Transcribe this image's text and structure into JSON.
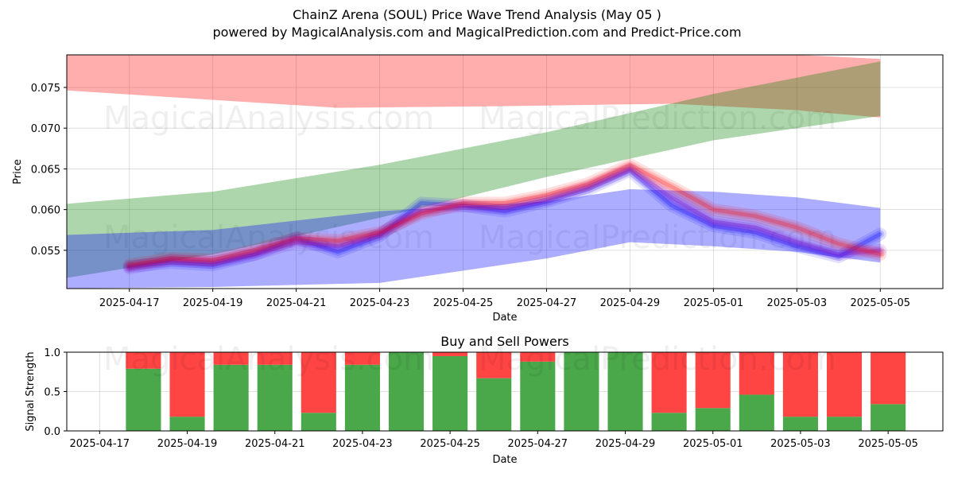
{
  "header": {
    "title": "ChainZ Arena (SOUL) Price Wave Trend Analysis (May 05 )",
    "subtitle": "powered by MagicalAnalysis.com and MagicalPrediction.com and Predict-Price.com"
  },
  "watermarks": [
    "MagicalAnalysis.com",
    "MagicalPrediction.com"
  ],
  "colors": {
    "red": "#ff0000",
    "green": "#008000",
    "blue": "#0000ff",
    "buy": "#4aa84a",
    "sell": "#ff4444"
  },
  "chart_data": [
    {
      "type": "area",
      "title": "",
      "xlabel": "Date",
      "ylabel": "Price",
      "grid": true,
      "xlim": [
        "2025-04-15 12:00",
        "2025-05-06 12:00"
      ],
      "ylim": [
        0.0503,
        0.079
      ],
      "x_ticks": [
        "2025-04-17",
        "2025-04-19",
        "2025-04-21",
        "2025-04-23",
        "2025-04-25",
        "2025-04-27",
        "2025-04-29",
        "2025-05-01",
        "2025-05-03",
        "2025-05-05"
      ],
      "y_ticks": [
        "0.055",
        "0.060",
        "0.065",
        "0.070",
        "0.075"
      ],
      "bands": [
        {
          "name": "red-upper-band",
          "color": "#ff0000",
          "opacity": 0.32,
          "x": [
            "2025-04-15",
            "2025-04-18",
            "2025-04-22",
            "2025-04-26",
            "2025-04-30",
            "2025-05-03",
            "2025-05-05"
          ],
          "upper": [
            0.079,
            0.079,
            0.079,
            0.079,
            0.079,
            0.079,
            0.0785
          ],
          "lower": [
            0.0748,
            0.0738,
            0.0725,
            0.0727,
            0.073,
            0.0722,
            0.0713
          ]
        },
        {
          "name": "green-trend-band",
          "color": "#008000",
          "opacity": 0.32,
          "x": [
            "2025-04-15",
            "2025-04-19",
            "2025-04-23",
            "2025-04-27",
            "2025-05-01",
            "2025-05-05"
          ],
          "upper": [
            0.0605,
            0.0622,
            0.0655,
            0.0695,
            0.0742,
            0.0782
          ],
          "lower": [
            0.0512,
            0.0545,
            0.059,
            0.064,
            0.0685,
            0.0715
          ]
        },
        {
          "name": "blue-lower-band",
          "color": "#0000ff",
          "opacity": 0.32,
          "x": [
            "2025-04-15",
            "2025-04-19",
            "2025-04-23",
            "2025-04-27",
            "2025-04-29",
            "2025-05-01",
            "2025-05-03",
            "2025-05-05"
          ],
          "upper": [
            0.0568,
            0.0575,
            0.0598,
            0.061,
            0.0625,
            0.0622,
            0.0615,
            0.0602
          ],
          "lower": [
            0.0503,
            0.0505,
            0.051,
            0.054,
            0.056,
            0.0555,
            0.0548,
            0.0535
          ]
        }
      ],
      "series": [
        {
          "name": "blue-wave",
          "color": "#0000ff",
          "x": [
            "2025-04-17",
            "2025-04-18",
            "2025-04-19",
            "2025-04-20",
            "2025-04-21",
            "2025-04-22",
            "2025-04-23",
            "2025-04-24",
            "2025-04-25",
            "2025-04-26",
            "2025-04-27",
            "2025-04-28",
            "2025-04-29",
            "2025-04-30",
            "2025-05-01",
            "2025-05-02",
            "2025-05-03",
            "2025-05-04",
            "2025-05-05"
          ],
          "values": [
            0.053,
            0.0535,
            0.0532,
            0.0545,
            0.0565,
            0.0548,
            0.0568,
            0.0608,
            0.0605,
            0.0598,
            0.061,
            0.0625,
            0.0648,
            0.0605,
            0.058,
            0.0572,
            0.0555,
            0.0542,
            0.057
          ]
        },
        {
          "name": "purple-wave",
          "color": "#8000c0",
          "x": [
            "2025-04-17",
            "2025-04-18",
            "2025-04-19",
            "2025-04-20",
            "2025-04-21",
            "2025-04-22",
            "2025-04-23",
            "2025-04-24",
            "2025-04-25",
            "2025-04-26",
            "2025-04-27",
            "2025-04-28",
            "2025-04-29",
            "2025-04-30",
            "2025-05-01",
            "2025-05-02",
            "2025-05-03",
            "2025-05-04",
            "2025-05-05"
          ],
          "values": [
            0.0528,
            0.0538,
            0.0535,
            0.0545,
            0.056,
            0.0555,
            0.057,
            0.0598,
            0.0605,
            0.0602,
            0.0612,
            0.0628,
            0.065,
            0.0615,
            0.0585,
            0.0578,
            0.056,
            0.0545,
            0.055
          ]
        },
        {
          "name": "red-wave",
          "color": "#ff0000",
          "x": [
            "2025-04-17",
            "2025-04-18",
            "2025-04-19",
            "2025-04-20",
            "2025-04-21",
            "2025-04-22",
            "2025-04-23",
            "2025-04-24",
            "2025-04-25",
            "2025-04-26",
            "2025-04-27",
            "2025-04-28",
            "2025-04-29",
            "2025-04-30",
            "2025-05-01",
            "2025-05-02",
            "2025-05-03",
            "2025-05-04",
            "2025-05-05"
          ],
          "values": [
            0.0532,
            0.054,
            0.0538,
            0.055,
            0.0565,
            0.0562,
            0.0572,
            0.0595,
            0.0608,
            0.0608,
            0.0618,
            0.0632,
            0.0655,
            0.0628,
            0.06,
            0.0592,
            0.0578,
            0.0558,
            0.0545
          ]
        }
      ]
    },
    {
      "type": "bar",
      "title": "Buy and Sell Powers",
      "xlabel": "Date",
      "ylabel": "Signal Strength",
      "ylim": [
        0,
        1
      ],
      "x_ticks": [
        "2025-04-17",
        "2025-04-19",
        "2025-04-21",
        "2025-04-23",
        "2025-04-25",
        "2025-04-27",
        "2025-04-29",
        "2025-05-01",
        "2025-05-03",
        "2025-05-05"
      ],
      "y_ticks": [
        "0.0",
        "0.5",
        "1.0"
      ],
      "categories": [
        "2025-04-18",
        "2025-04-19",
        "2025-04-20",
        "2025-04-21",
        "2025-04-22",
        "2025-04-23",
        "2025-04-24",
        "2025-04-25",
        "2025-04-26",
        "2025-04-27",
        "2025-04-28",
        "2025-04-29",
        "2025-04-30",
        "2025-05-01",
        "2025-05-02",
        "2025-05-03",
        "2025-05-04",
        "2025-05-05"
      ],
      "series": [
        {
          "name": "Buy",
          "color": "#4aa84a",
          "values": [
            0.79,
            0.18,
            0.84,
            0.84,
            0.23,
            0.84,
            1.0,
            0.95,
            0.67,
            0.88,
            1.0,
            1.0,
            0.23,
            0.29,
            0.46,
            0.18,
            0.18,
            0.34
          ]
        },
        {
          "name": "Sell",
          "color": "#ff4444",
          "values": [
            0.21,
            0.82,
            0.16,
            0.16,
            0.77,
            0.16,
            0.0,
            0.05,
            0.33,
            0.12,
            0.0,
            0.0,
            0.77,
            0.71,
            0.54,
            0.82,
            0.82,
            0.66
          ]
        }
      ]
    }
  ]
}
